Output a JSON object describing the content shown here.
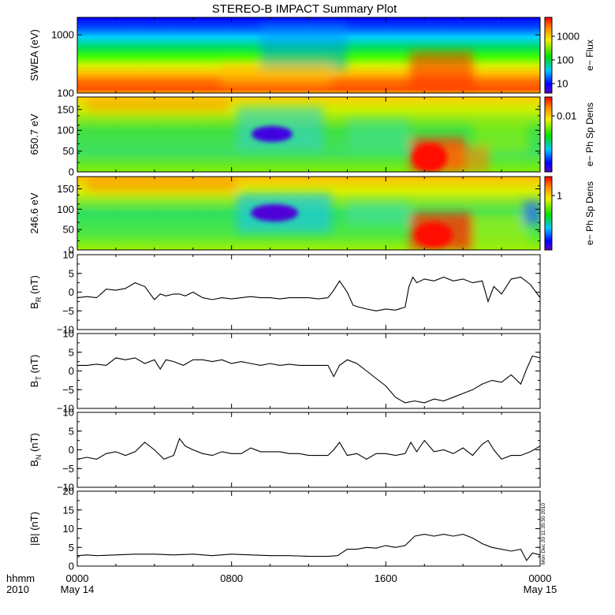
{
  "title": "STEREO-B IMPACT Summary Plot",
  "footer": {
    "left_top": "hhmm",
    "left_bottom": "2010",
    "x_ticks": [
      "0000",
      "0800",
      "1600",
      "0000"
    ],
    "x_dates": [
      "May 14",
      "",
      "",
      "May 15"
    ]
  },
  "timestamp": "Mon Dec 20 11:35:50 2010",
  "colors": {
    "line": "#000000",
    "background": "#ffffff"
  },
  "chart_data": [
    {
      "type": "heatmap",
      "ylabel": "SWEA (eV)",
      "yscale": "log",
      "ylim": [
        100,
        2000
      ],
      "yticks": [
        "1000",
        "100"
      ],
      "colorbar_label": "e− Flux",
      "colorbar_ticks": [
        "1000",
        "100",
        "10"
      ]
    },
    {
      "type": "heatmap",
      "ylabel": "650.7 eV",
      "ylim": [
        0,
        180
      ],
      "yticks": [
        "150",
        "100",
        "50",
        "0"
      ],
      "colorbar_label": "e− Ph Sp Dens",
      "colorbar_ticks": [
        "0.01"
      ]
    },
    {
      "type": "heatmap",
      "ylabel": "246.6 eV",
      "ylim": [
        0,
        180
      ],
      "yticks": [
        "150",
        "100",
        "50",
        "0"
      ],
      "colorbar_label": "e− Ph Sp Dens",
      "colorbar_ticks": [
        "1"
      ]
    },
    {
      "type": "line",
      "ylabel_main": "B",
      "ylabel_sub": "R",
      "ylabel_tail": " (nT)",
      "ylim": [
        -10,
        10
      ],
      "yticks": [
        "10",
        "5",
        "0",
        "−5",
        "−10"
      ],
      "x_hours": [
        0,
        0.5,
        1,
        1.5,
        2,
        2.5,
        3,
        3.5,
        4,
        4.3,
        4.6,
        5,
        5.3,
        5.6,
        6,
        6.5,
        7,
        7.5,
        8,
        8.5,
        9,
        9.5,
        10,
        10.5,
        11,
        11.5,
        12,
        12.5,
        13,
        13.3,
        13.6,
        14,
        14.3,
        14.6,
        15,
        15.5,
        16,
        16.5,
        17,
        17.2,
        17.4,
        17.6,
        18,
        18.5,
        19,
        19.5,
        20,
        20.5,
        21,
        21.3,
        21.6,
        22,
        22.5,
        23,
        23.5,
        24
      ],
      "y": [
        -1.5,
        -1.2,
        -1.5,
        0.8,
        0.5,
        1,
        2.5,
        1.5,
        -2,
        -0.5,
        -1,
        -0.5,
        -0.5,
        -1,
        0,
        -1.5,
        -2,
        -1.5,
        -1.8,
        -1.5,
        -1.2,
        -1.5,
        -1.5,
        -1.8,
        -1.5,
        -1.5,
        -1.5,
        -1.8,
        -1.5,
        0.5,
        3,
        0,
        -3.5,
        -4,
        -4.5,
        -5,
        -4.5,
        -4.8,
        -4,
        1.5,
        4,
        2.5,
        3.5,
        3,
        4,
        3,
        3.5,
        2.5,
        3,
        -2.5,
        1.5,
        -0.5,
        3.5,
        4,
        2,
        -1.5
      ]
    },
    {
      "type": "line",
      "ylabel_main": "B",
      "ylabel_sub": "T",
      "ylabel_tail": " (nT)",
      "ylim": [
        -10,
        10
      ],
      "yticks": [
        "10",
        "5",
        "0",
        "−5",
        "−10"
      ],
      "x_hours": [
        0,
        0.5,
        1,
        1.5,
        2,
        2.5,
        3,
        3.5,
        4,
        4.3,
        4.6,
        5,
        5.5,
        6,
        6.5,
        7,
        7.5,
        8,
        8.5,
        9,
        9.5,
        10,
        10.5,
        11,
        11.5,
        12,
        12.5,
        13,
        13.3,
        13.6,
        14,
        14.5,
        15,
        15.5,
        16,
        16.5,
        17,
        17.5,
        18,
        18.5,
        19,
        19.5,
        20,
        20.5,
        21,
        21.5,
        22,
        22.5,
        23,
        23.3,
        23.6,
        24
      ],
      "y": [
        1.5,
        1.5,
        1.8,
        1.5,
        3.5,
        3,
        3.5,
        2,
        3,
        0.5,
        3,
        2.5,
        1.5,
        3,
        3,
        2.5,
        3,
        2,
        2.5,
        2,
        1.5,
        2,
        1.5,
        1.8,
        1.5,
        1.5,
        1.5,
        1.5,
        -1.5,
        1.5,
        3,
        2,
        0,
        -2,
        -4,
        -7,
        -8.5,
        -8,
        -8.5,
        -7.5,
        -8,
        -7,
        -6,
        -5,
        -3.5,
        -2.5,
        -3,
        -1,
        -3.5,
        0.5,
        4,
        3.5
      ]
    },
    {
      "type": "line",
      "ylabel_main": "B",
      "ylabel_sub": "N",
      "ylabel_tail": " (nT)",
      "ylim": [
        -10,
        10
      ],
      "yticks": [
        "10",
        "5",
        "0",
        "−5",
        "−10"
      ],
      "x_hours": [
        0,
        0.5,
        1,
        1.5,
        2,
        2.5,
        3,
        3.5,
        4,
        4.5,
        5,
        5.3,
        5.6,
        6,
        6.5,
        7,
        7.5,
        8,
        8.5,
        9,
        9.5,
        10,
        10.5,
        11,
        11.5,
        12,
        12.5,
        13,
        13.3,
        13.6,
        14,
        14.5,
        15,
        15.5,
        16,
        16.5,
        17,
        17.3,
        17.6,
        18,
        18.5,
        19,
        19.5,
        20,
        20.5,
        21,
        21.3,
        21.6,
        22,
        22.5,
        23,
        23.5,
        24
      ],
      "y": [
        -2.5,
        -2,
        -2.5,
        -1,
        -0.5,
        -1.5,
        -0.5,
        2,
        0,
        -2.5,
        -1.5,
        3,
        1,
        0,
        -1,
        -1.5,
        -0.5,
        -1,
        -1,
        0.5,
        -0.5,
        -0.5,
        -0.5,
        -1,
        -1,
        -1.5,
        -1.5,
        -1.5,
        0,
        2,
        -1.5,
        -1,
        -2.5,
        -1,
        -1,
        -1.5,
        -1,
        2,
        -0.5,
        2.5,
        -0.5,
        0,
        -1,
        0.5,
        -1.5,
        1.5,
        2.5,
        0,
        -2.5,
        -1.5,
        -1.5,
        -0.5,
        1
      ]
    },
    {
      "type": "line",
      "ylabel_main": "|B| (nT)",
      "ylim": [
        0,
        20
      ],
      "yticks": [
        "20",
        "15",
        "10",
        "5",
        "0"
      ],
      "x_hours": [
        0,
        0.5,
        1,
        2,
        3,
        4,
        5,
        6,
        7,
        8,
        9,
        10,
        11,
        12,
        13,
        13.5,
        14,
        14.5,
        15,
        15.5,
        16,
        16.5,
        17,
        17.5,
        18,
        18.5,
        19,
        19.5,
        20,
        20.5,
        21,
        21.5,
        22,
        22.5,
        23,
        23.3,
        23.6,
        24
      ],
      "y": [
        2.8,
        3,
        2.8,
        3,
        3.2,
        3.2,
        3,
        3.2,
        2.8,
        3.2,
        3,
        2.8,
        2.8,
        2.6,
        2.6,
        2.8,
        4.5,
        4.5,
        5,
        4.8,
        5.5,
        5,
        5.5,
        8,
        8.5,
        8,
        8.5,
        8,
        8.5,
        7.5,
        6,
        5,
        4.5,
        4,
        4.5,
        1.5,
        3.5,
        3
      ]
    }
  ]
}
